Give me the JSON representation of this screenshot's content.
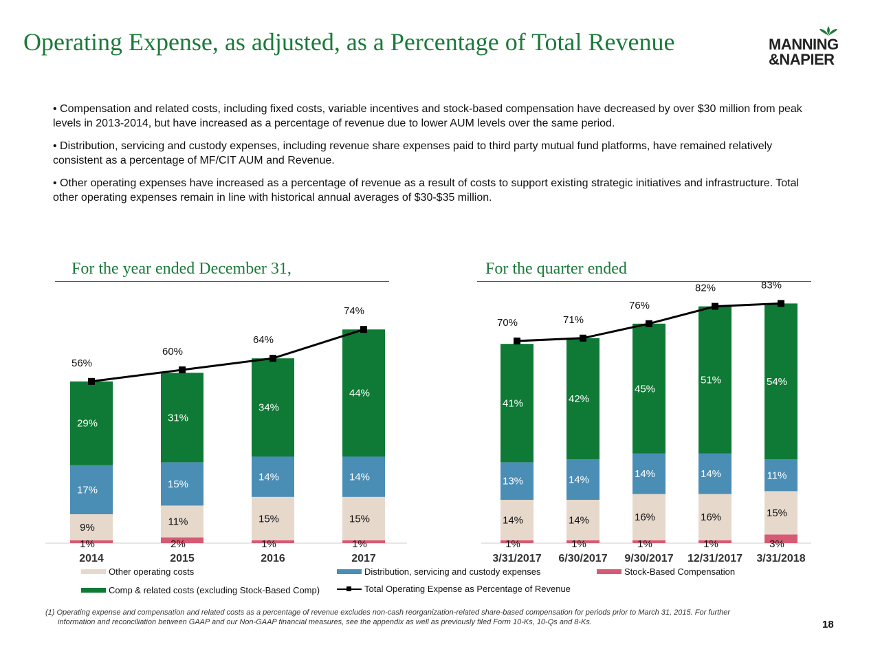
{
  "header": {
    "title": "Operating Expense, as adjusted, as a Percentage of Total Revenue",
    "logo_line1": "MANNING",
    "logo_line2": "&NAPIER"
  },
  "bullets": [
    "• Compensation and related costs, including fixed costs, variable incentives and stock-based compensation have decreased by over $30 million from peak levels in 2013-2014, but have increased as a percentage of revenue due to lower AUM levels over the same period.",
    "• Distribution, servicing and custody expenses, including revenue share expenses paid to third party mutual fund platforms, have remained relatively consistent as a percentage of MF/CIT AUM and Revenue.",
    "• Other operating expenses have increased as a percentage of revenue as a result of costs to support existing strategic initiatives and infrastructure. Total other operating expenses remain in line with historical annual averages of $30-$35 million."
  ],
  "sections": {
    "annual_label": "For the year ended December 31,",
    "quarterly_label": "For the quarter ended"
  },
  "colors": {
    "brand_green": "#1b7a3a",
    "comp": "#0e7a35",
    "distribution": "#4a8db5",
    "other": "#e6d9cc",
    "stock": "#d75a74",
    "total_line": "#000000"
  },
  "chart_data": [
    {
      "type": "bar",
      "stacked": true,
      "categories": [
        "2014",
        "2015",
        "2016",
        "2017"
      ],
      "series": [
        {
          "name": "Stock-Based Compensation",
          "key": "stock",
          "values": [
            1,
            2,
            1,
            1
          ],
          "labels": [
            "1%",
            "2%",
            "1%",
            "1%"
          ]
        },
        {
          "name": "Other operating costs",
          "key": "other",
          "values": [
            9,
            11,
            15,
            15
          ],
          "labels": [
            "9%",
            "11%",
            "15%",
            "15%"
          ]
        },
        {
          "name": "Distribution, servicing and custody expenses",
          "key": "distribution",
          "values": [
            17,
            15,
            14,
            14
          ],
          "labels": [
            "17%",
            "15%",
            "14%",
            "14%"
          ]
        },
        {
          "name": "Comp & related costs (excluding Stock-Based Comp)",
          "key": "comp",
          "values": [
            29,
            31,
            34,
            44
          ],
          "labels": [
            "29%",
            "31%",
            "34%",
            "44%"
          ]
        }
      ],
      "line": {
        "name": "Total Operating Expense as Percentage of Revenue",
        "values": [
          56,
          60,
          64,
          74
        ],
        "labels": [
          "56%",
          "60%",
          "64%",
          "74%"
        ]
      },
      "ylim": [
        0,
        90
      ]
    },
    {
      "type": "bar",
      "stacked": true,
      "categories": [
        "3/31/2017",
        "6/30/2017",
        "9/30/2017",
        "12/31/2017",
        "3/31/2018"
      ],
      "series": [
        {
          "name": "Stock-Based Compensation",
          "key": "stock",
          "values": [
            1,
            1,
            1,
            1,
            3
          ],
          "labels": [
            "1%",
            "1%",
            "1%",
            "1%",
            "3%"
          ]
        },
        {
          "name": "Other operating costs",
          "key": "other",
          "values": [
            14,
            14,
            16,
            16,
            15
          ],
          "labels": [
            "14%",
            "14%",
            "16%",
            "16%",
            "15%"
          ]
        },
        {
          "name": "Distribution, servicing and custody expenses",
          "key": "distribution",
          "values": [
            13,
            14,
            14,
            14,
            11
          ],
          "labels": [
            "13%",
            "14%",
            "14%",
            "14%",
            "11%"
          ]
        },
        {
          "name": "Comp & related costs (excluding Stock-Based Comp)",
          "key": "comp",
          "values": [
            41,
            42,
            45,
            51,
            54
          ],
          "labels": [
            "41%",
            "42%",
            "45%",
            "51%",
            "54%"
          ]
        }
      ],
      "line": {
        "name": "Total Operating Expense as Percentage of Revenue",
        "values": [
          70,
          71,
          76,
          82,
          83
        ],
        "labels": [
          "70%",
          "71%",
          "76%",
          "82%",
          "83%"
        ]
      },
      "ylim": [
        0,
        90
      ]
    }
  ],
  "legend": {
    "other": "Other operating costs",
    "distribution": "Distribution, servicing and custody expenses",
    "stock": "Stock-Based Compensation",
    "comp": "Comp & related costs (excluding Stock-Based Comp)",
    "total": "Total Operating Expense as Percentage of Revenue"
  },
  "footnote": {
    "line1": "(1)  Operating expense and compensation and related costs as a percentage of revenue excludes non-cash reorganization-related share-based compensation for periods prior to March 31, 2015.  For further",
    "line2": "information and reconciliation between GAAP and our Non-GAAP financial measures, see the appendix as well as previously filed Form 10-Ks, 10-Qs and 8-Ks."
  },
  "page_number": "18"
}
